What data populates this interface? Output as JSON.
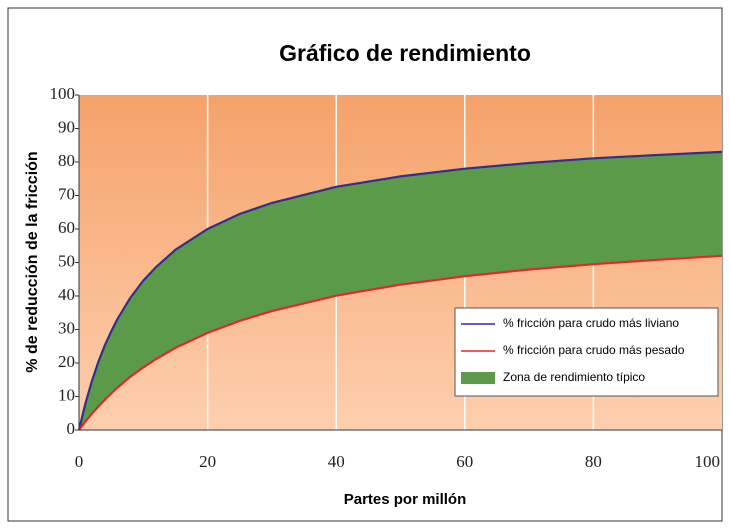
{
  "chart_data": {
    "type": "line",
    "title": "Gráfico de rendimiento",
    "xlabel": "Partes por millón",
    "ylabel": "% de reducción de la fricción",
    "x": [
      0,
      1,
      2,
      3,
      4,
      5,
      6,
      8,
      10,
      12,
      15,
      20,
      25,
      30,
      40,
      50,
      60,
      70,
      80,
      90,
      100
    ],
    "series": [
      {
        "name": "% fricción para crudo más liviano",
        "color": "#2e3192",
        "values": [
          0,
          7.9,
          14.6,
          20.3,
          25.2,
          29.4,
          33.2,
          39.5,
          44.6,
          48.7,
          53.8,
          60,
          64.5,
          67.8,
          72.6,
          75.7,
          78,
          79.7,
          81.1,
          82.1,
          83
        ]
      },
      {
        "name": "% fricción para crudo más pesado",
        "color": "#e8242b",
        "values": [
          0,
          2.5,
          4.9,
          7.0,
          9.0,
          10.9,
          12.7,
          15.9,
          18.7,
          21.2,
          24.5,
          29,
          32.6,
          35.5,
          40.1,
          43.4,
          45.9,
          47.9,
          49.5,
          50.8,
          52
        ]
      }
    ],
    "fill_between": {
      "name": "Zona de rendimiento típico",
      "color": "#5b9a48"
    },
    "xlim": [
      0,
      100
    ],
    "xticks": [
      0,
      20,
      40,
      60,
      80,
      100
    ],
    "ylim": [
      0,
      100
    ],
    "yticks": [
      0,
      10,
      20,
      30,
      40,
      50,
      60,
      70,
      80,
      90,
      100
    ],
    "grid": "x",
    "legend": "lower right"
  }
}
